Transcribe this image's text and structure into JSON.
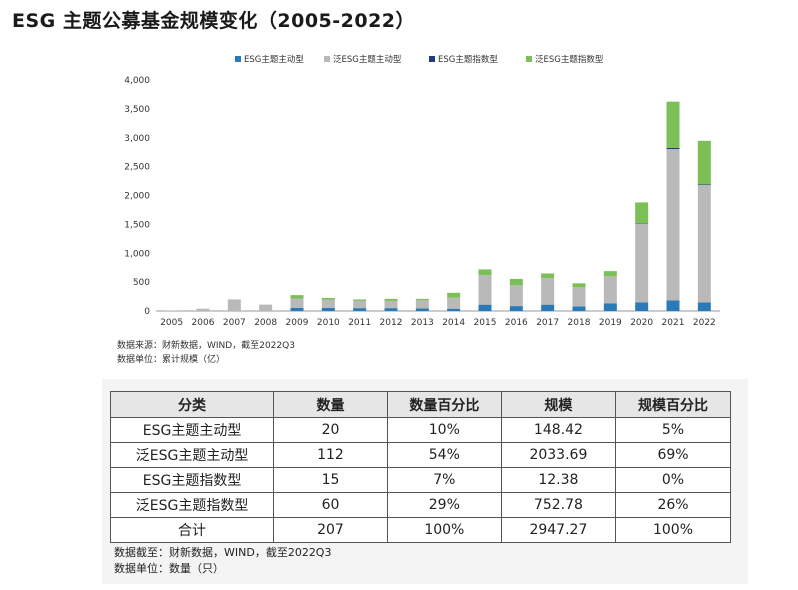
{
  "title": "ESG 主题公募基金规模变化（2005-2022）",
  "chart_data": {
    "type": "bar",
    "stacked": true,
    "categories": [
      "2005",
      "2006",
      "2007",
      "2008",
      "2009",
      "2010",
      "2011",
      "2012",
      "2013",
      "2014",
      "2015",
      "2016",
      "2017",
      "2018",
      "2019",
      "2020",
      "2021",
      "2022"
    ],
    "series": [
      {
        "name": "ESG主题主动型",
        "color": "#2a7ab8",
        "values": [
          0,
          0,
          0,
          0,
          55,
          55,
          50,
          50,
          45,
          40,
          110,
          85,
          110,
          80,
          130,
          150,
          185,
          148
        ]
      },
      {
        "name": "泛ESG主题主动型",
        "color": "#b9b9b9",
        "values": [
          10,
          40,
          200,
          110,
          160,
          140,
          125,
          125,
          140,
          190,
          510,
          360,
          460,
          330,
          470,
          1360,
          2620,
          2034
        ]
      },
      {
        "name": "ESG主题指数型",
        "color": "#1f3d7a",
        "values": [
          0,
          0,
          0,
          0,
          0,
          0,
          0,
          0,
          0,
          0,
          0,
          0,
          0,
          0,
          0,
          10,
          20,
          12
        ]
      },
      {
        "name": "泛ESG主题指数型",
        "color": "#7bbf56",
        "values": [
          0,
          0,
          0,
          0,
          60,
          30,
          25,
          35,
          25,
          85,
          100,
          110,
          80,
          70,
          90,
          360,
          800,
          753
        ]
      }
    ],
    "ylim": [
      0,
      4000
    ],
    "yticks": [
      "0",
      "500",
      "1,000",
      "1,500",
      "2,000",
      "2,500",
      "3,000",
      "3,500",
      "4,000"
    ],
    "ytick_values": [
      0,
      500,
      1000,
      1500,
      2000,
      2500,
      3000,
      3500,
      4000
    ],
    "legend_position": "top"
  },
  "chart_notes": [
    "数据来源：财新数据，WIND，截至2022Q3",
    "数据单位：累计规模（亿）"
  ],
  "table": {
    "headers": [
      "分类",
      "数量",
      "数量百分比",
      "规模",
      "规模百分比"
    ],
    "rows": [
      [
        "ESG主题主动型",
        "20",
        "10%",
        "148.42",
        "5%"
      ],
      [
        "泛ESG主题主动型",
        "112",
        "54%",
        "2033.69",
        "69%"
      ],
      [
        "ESG主题指数型",
        "15",
        "7%",
        "12.38",
        "0%"
      ],
      [
        "泛ESG主题指数型",
        "60",
        "29%",
        "752.78",
        "26%"
      ],
      [
        "合计",
        "207",
        "100%",
        "2947.27",
        "100%"
      ]
    ]
  },
  "table_notes": [
    "数据截至：财新数据，WIND，截至2022Q3",
    "数据单位：数量（只）"
  ]
}
